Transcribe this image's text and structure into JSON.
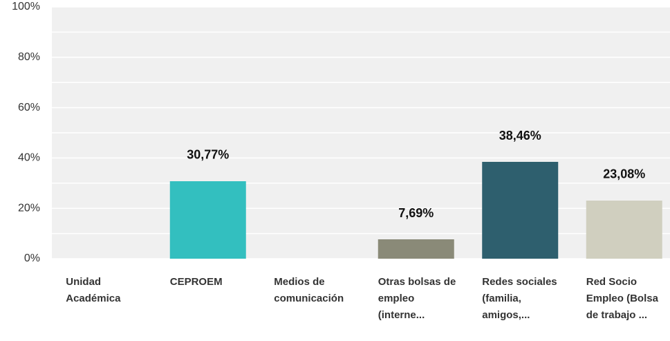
{
  "chart_data": {
    "type": "bar",
    "categories": [
      "Unidad Académica",
      "CEPROEM",
      "Medios de comunicación",
      "Otras bolsas de empleo (interne...",
      "Redes sociales (familia, amigos,...",
      "Red Socio Empleo (Bolsa de trabajo ..."
    ],
    "values": [
      0,
      30.77,
      0,
      7.69,
      38.46,
      23.08
    ],
    "value_labels": [
      null,
      "30,77%",
      null,
      "7,69%",
      "38,46%",
      "23,08%"
    ],
    "colors": [
      "#33bfbf",
      "#33bfbf",
      "#8a8a78",
      "#8a8a78",
      "#2e5f6e",
      "#d0cfbf"
    ],
    "ylim": [
      0,
      100
    ],
    "yticks": [
      {
        "value": 0,
        "label": "0%"
      },
      {
        "value": 20,
        "label": "20%"
      },
      {
        "value": 40,
        "label": "40%"
      },
      {
        "value": 60,
        "label": "60%"
      },
      {
        "value": 80,
        "label": "80%"
      },
      {
        "value": 100,
        "label": "100%"
      }
    ],
    "minor_yticks": [
      10,
      30,
      50,
      70,
      90
    ],
    "grid": true
  }
}
